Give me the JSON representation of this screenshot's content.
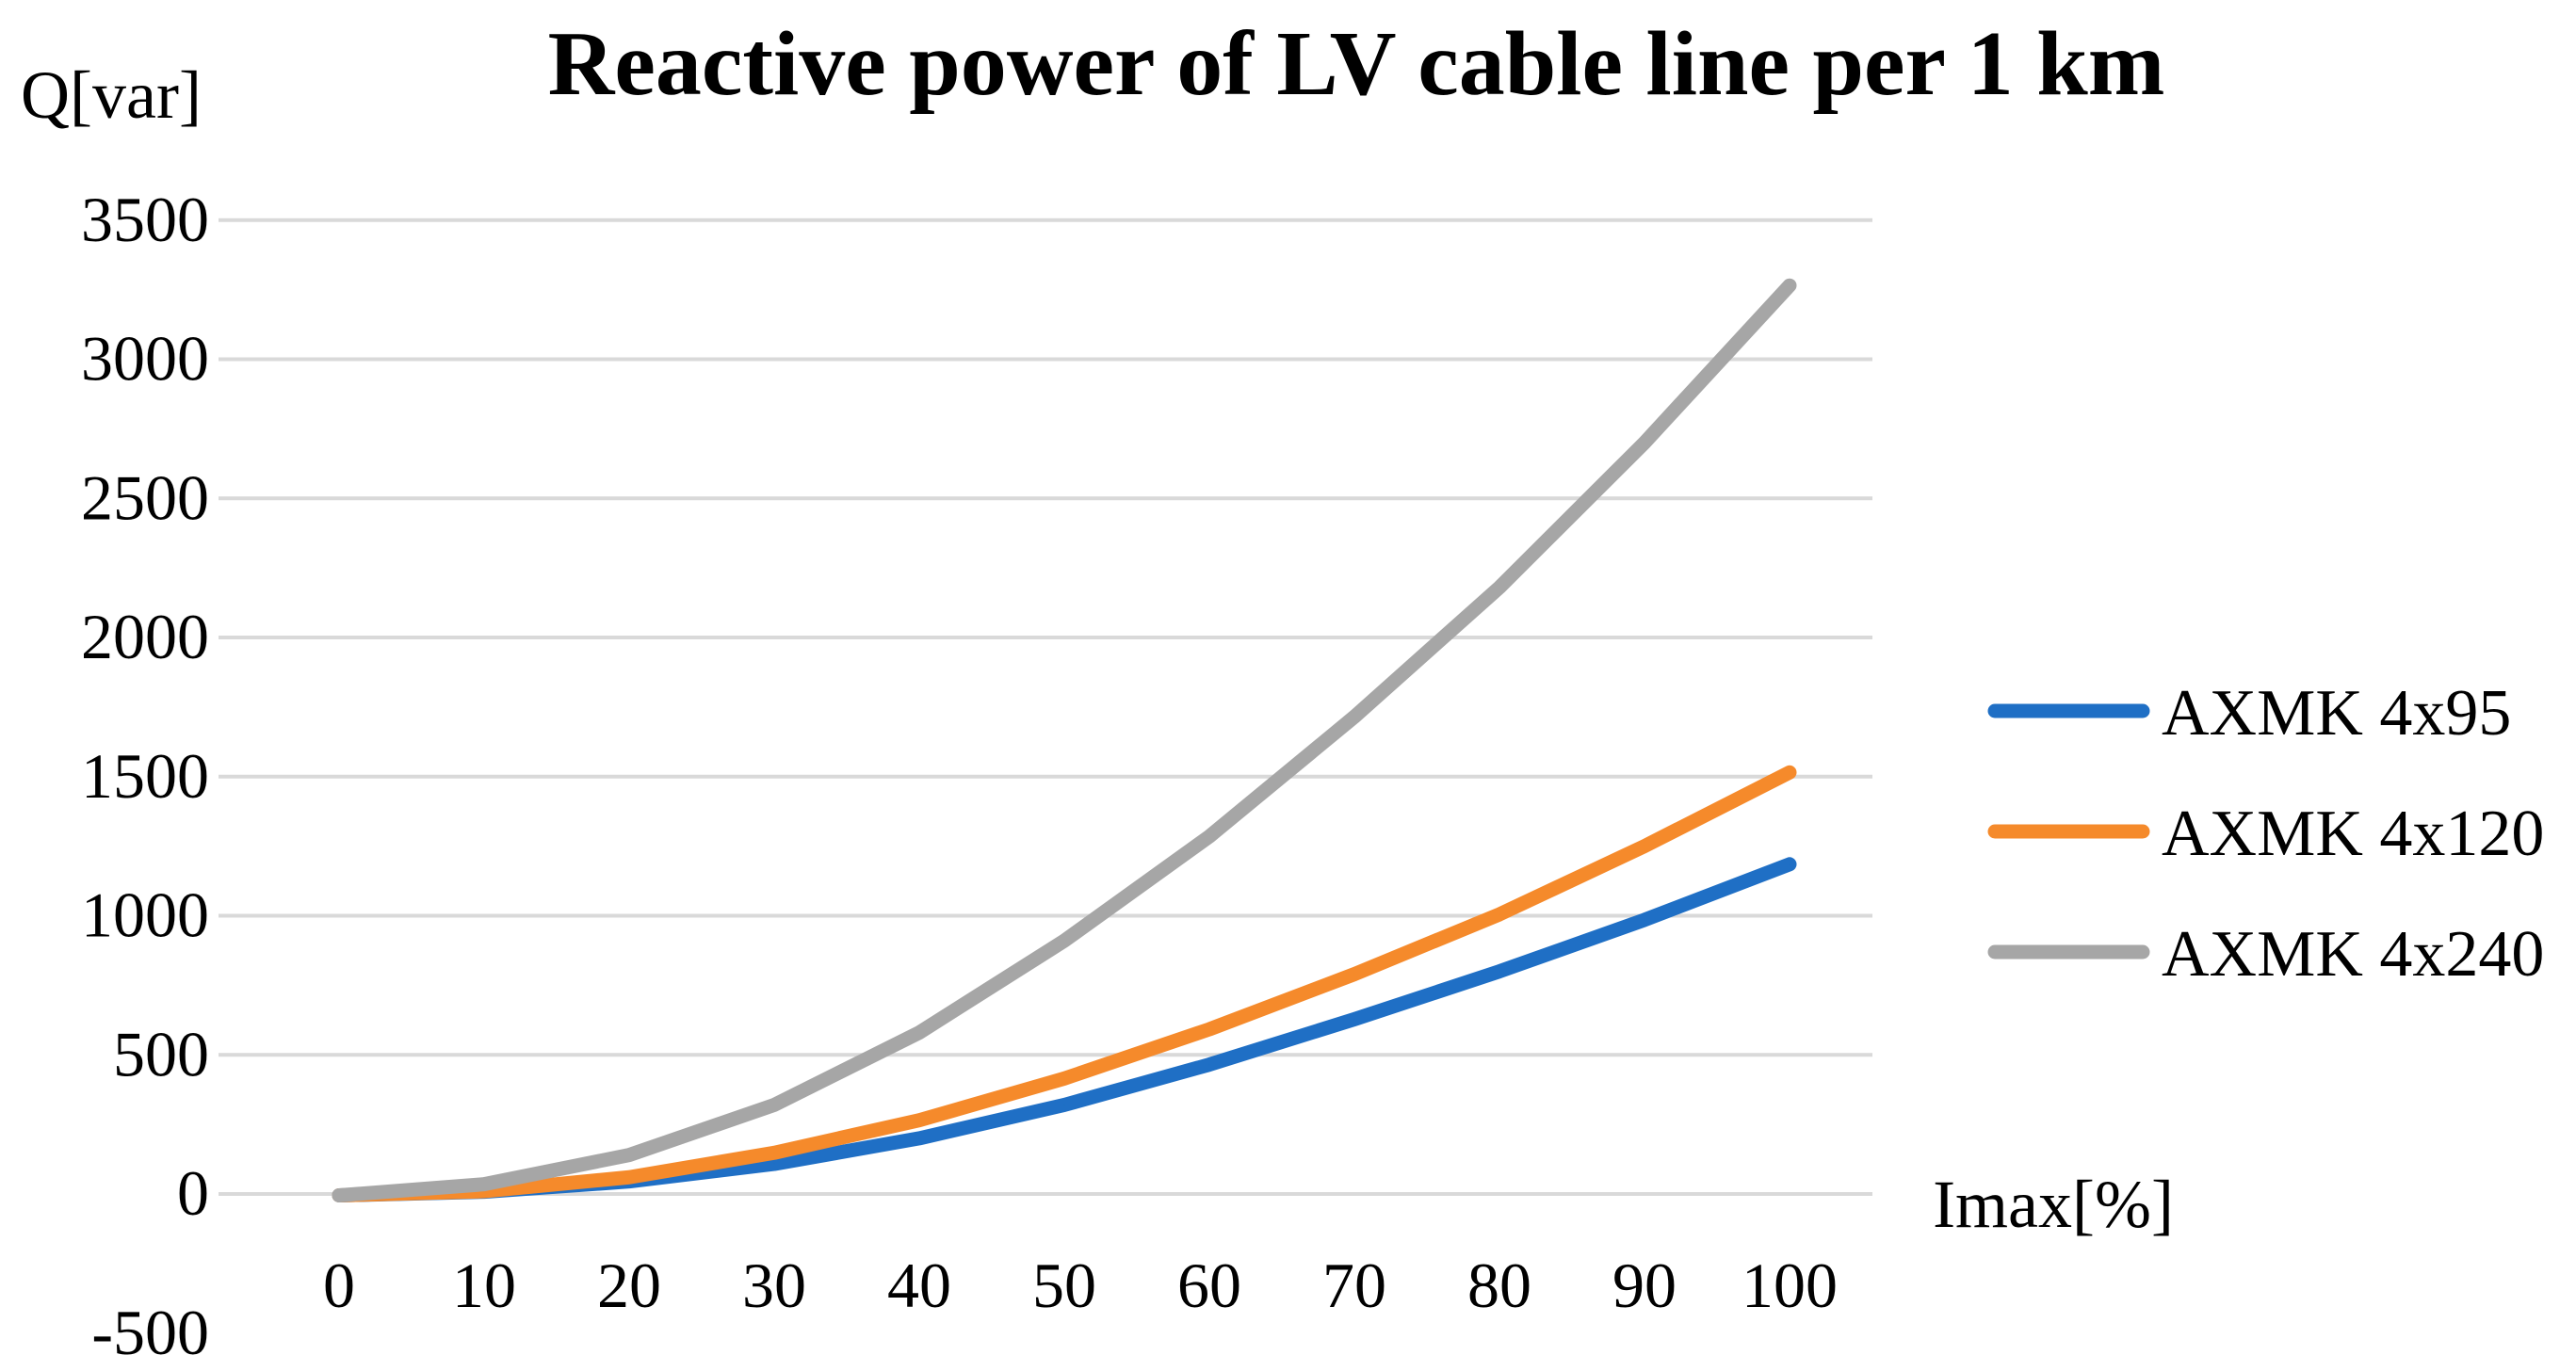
{
  "chart_data": {
    "type": "line",
    "title": "Reactive power of LV cable line per 1 km",
    "ylabel": "Q[var]",
    "xlabel": "Imax[%]",
    "x": [
      0,
      10,
      20,
      30,
      40,
      50,
      60,
      70,
      80,
      90,
      100
    ],
    "ylim": [
      -500,
      3500
    ],
    "yticks": [
      3500,
      3000,
      2500,
      2000,
      1500,
      1000,
      500,
      0,
      -500
    ],
    "ytick_labels": [
      "3500",
      "3000",
      "2500",
      "2000",
      "1500",
      "1000",
      "500",
      "0",
      "-500"
    ],
    "xtick_labels": [
      "0",
      "10",
      "20",
      "30",
      "40",
      "50",
      "60",
      "70",
      "80",
      "90",
      "100"
    ],
    "grid": true,
    "legend_position": "right",
    "series": [
      {
        "name": "AXMK 4x95",
        "color": "#1F6FC5",
        "values": [
          -5,
          8,
          45,
          108,
          200,
          320,
          465,
          628,
          800,
          985,
          1185
        ]
      },
      {
        "name": "AXMK 4x120",
        "color": "#F58A2B",
        "values": [
          -5,
          10,
          60,
          148,
          265,
          415,
          592,
          790,
          1005,
          1250,
          1515
        ]
      },
      {
        "name": "AXMK 4x240",
        "color": "#A6A6A6",
        "values": [
          -5,
          35,
          140,
          320,
          580,
          910,
          1285,
          1715,
          2180,
          2700,
          3265
        ]
      }
    ]
  }
}
